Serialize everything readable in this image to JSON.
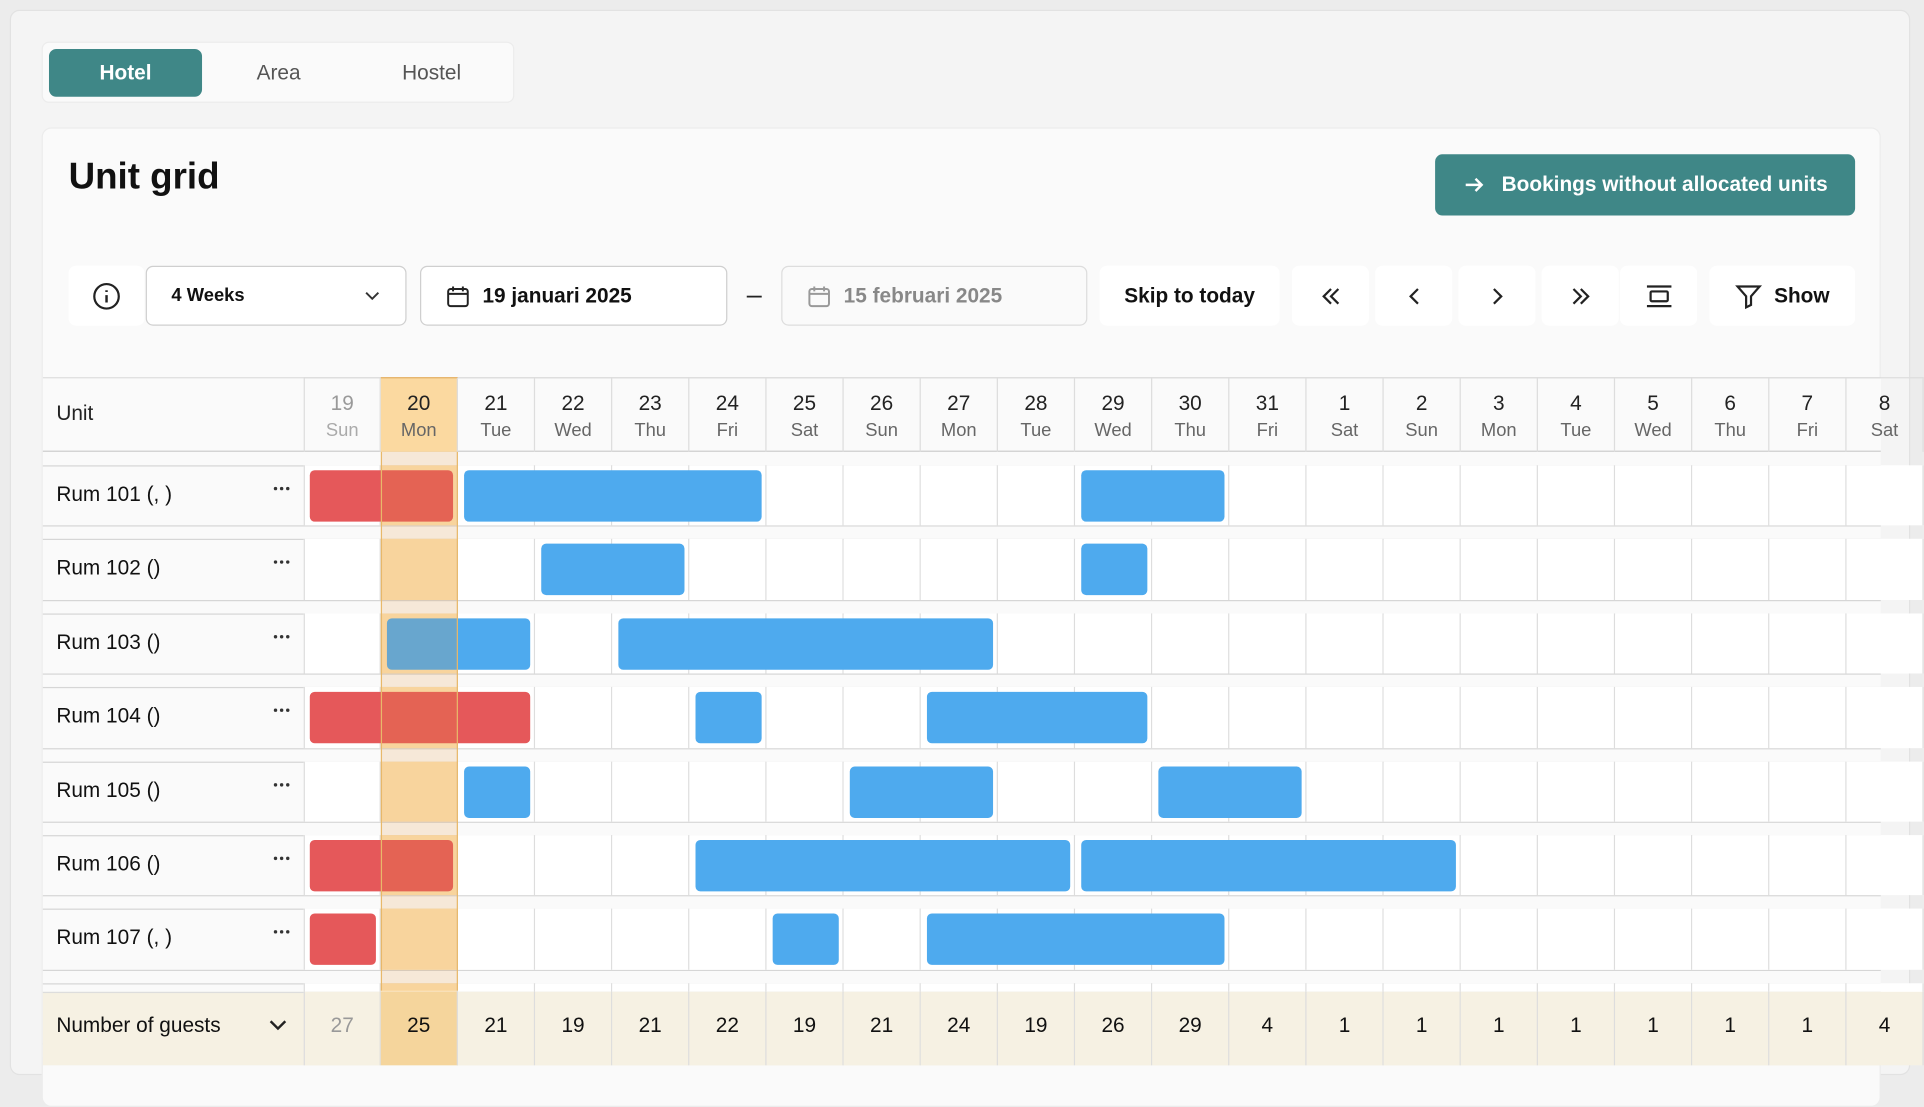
{
  "tabs": [
    "Hotel",
    "Area",
    "Hostel"
  ],
  "active_tab": 0,
  "title": "Unit grid",
  "button": "Bookings without allocated units",
  "toolbar": {
    "period": "4 Weeks",
    "start_date": "19 januari 2025",
    "separator": "–",
    "end_date": "15 februari 2025",
    "skip": "Skip to today",
    "show": "Show"
  },
  "grid": {
    "unit_header": "Unit",
    "today": 1,
    "days": [
      {
        "day": 19,
        "weekday": "Sun"
      },
      {
        "day": 20,
        "weekday": "Mon"
      },
      {
        "day": 21,
        "weekday": "Tue"
      },
      {
        "day": 22,
        "weekday": "Wed"
      },
      {
        "day": 23,
        "weekday": "Thu"
      },
      {
        "day": 24,
        "weekday": "Fri"
      },
      {
        "day": 25,
        "weekday": "Sat"
      },
      {
        "day": 26,
        "weekday": "Sun"
      },
      {
        "day": 27,
        "weekday": "Mon"
      },
      {
        "day": 28,
        "weekday": "Tue"
      },
      {
        "day": 29,
        "weekday": "Wed"
      },
      {
        "day": 30,
        "weekday": "Thu"
      },
      {
        "day": 31,
        "weekday": "Fri"
      },
      {
        "day": 1,
        "weekday": "Sat"
      },
      {
        "day": 2,
        "weekday": "Sun"
      },
      {
        "day": 3,
        "weekday": "Mon"
      },
      {
        "day": 4,
        "weekday": "Tue"
      },
      {
        "day": 5,
        "weekday": "Wed"
      },
      {
        "day": 6,
        "weekday": "Thu"
      },
      {
        "day": 7,
        "weekday": "Fri"
      },
      {
        "day": 8,
        "weekday": "Sat"
      }
    ],
    "units": [
      {
        "name": "Rum 101 (, )",
        "bookings": [
          {
            "kind": "red",
            "start": 0,
            "span": 2
          },
          {
            "kind": "blue",
            "start": 2,
            "span": 4
          },
          {
            "kind": "blue",
            "start": 10,
            "span": 2
          }
        ]
      },
      {
        "name": "Rum 102 ()",
        "bookings": [
          {
            "kind": "blue",
            "start": 3,
            "span": 2
          },
          {
            "kind": "blue",
            "start": 10,
            "span": 1
          }
        ]
      },
      {
        "name": "Rum 103 ()",
        "bookings": [
          {
            "kind": "blue",
            "start": 1,
            "span": 2
          },
          {
            "kind": "blue",
            "start": 4,
            "span": 5
          }
        ]
      },
      {
        "name": "Rum 104 ()",
        "bookings": [
          {
            "kind": "red",
            "start": 0,
            "span": 3
          },
          {
            "kind": "blue",
            "start": 5,
            "span": 1
          },
          {
            "kind": "blue",
            "start": 8,
            "span": 3
          }
        ]
      },
      {
        "name": "Rum 105 ()",
        "bookings": [
          {
            "kind": "blue",
            "start": 2,
            "span": 1
          },
          {
            "kind": "blue",
            "start": 7,
            "span": 2
          },
          {
            "kind": "blue",
            "start": 11,
            "span": 2
          }
        ]
      },
      {
        "name": "Rum 106 ()",
        "bookings": [
          {
            "kind": "red",
            "start": 0,
            "span": 2
          },
          {
            "kind": "blue",
            "start": 5,
            "span": 5
          },
          {
            "kind": "blue",
            "start": 10,
            "span": 5
          }
        ]
      },
      {
        "name": "Rum 107 (, )",
        "bookings": [
          {
            "kind": "red",
            "start": 0,
            "span": 1
          },
          {
            "kind": "blue",
            "start": 6,
            "span": 1
          },
          {
            "kind": "blue",
            "start": 8,
            "span": 4
          }
        ]
      }
    ],
    "footer": {
      "label": "Number of guests",
      "values": [
        27,
        25,
        21,
        19,
        21,
        22,
        19,
        21,
        24,
        19,
        26,
        29,
        4,
        1,
        1,
        1,
        1,
        1,
        1,
        1,
        4
      ]
    }
  }
}
